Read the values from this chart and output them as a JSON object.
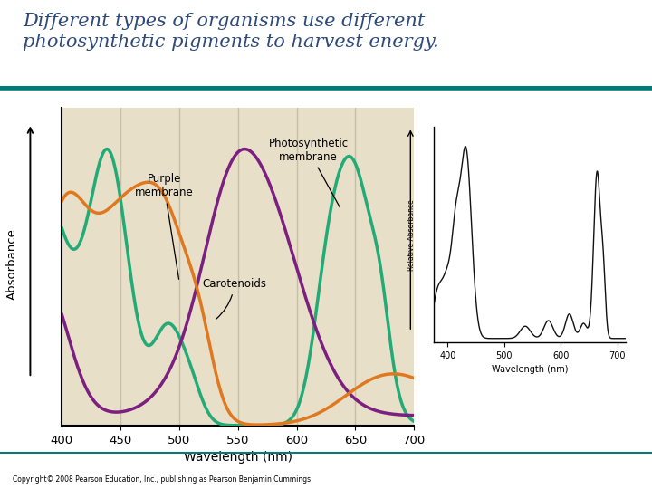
{
  "title_line1": "Different types of organisms use different",
  "title_line2": "photosynthetic pigments to harvest energy.",
  "title_color": "#2E4A7A",
  "title_fontsize": 15,
  "teal_line_color": "#007B7B",
  "background_color": "#ffffff",
  "plot_bg_color": "#E8DFC8",
  "xlabel": "Wavelength (nm)",
  "ylabel": "Absorbance",
  "ylabel2": "Relative Absorbance",
  "xlabel2": "Wavelength (nm)",
  "xlim": [
    400,
    700
  ],
  "xticks": [
    400,
    450,
    500,
    550,
    600,
    650,
    700
  ],
  "copyright": "Copyright© 2008 Pearson Education, Inc., publishing as Pearson Benjamin Cummings",
  "green_color": "#22AA77",
  "purple_color": "#7B2080",
  "orange_color": "#E07820",
  "black_color": "#111111",
  "grid_color": "#c8bea8",
  "annotation_purple_membrane": "Purple\nmembrane",
  "annotation_photosynthetic": "Photosynthetic\nmembrane",
  "annotation_carotenoids": "Carotenoids"
}
